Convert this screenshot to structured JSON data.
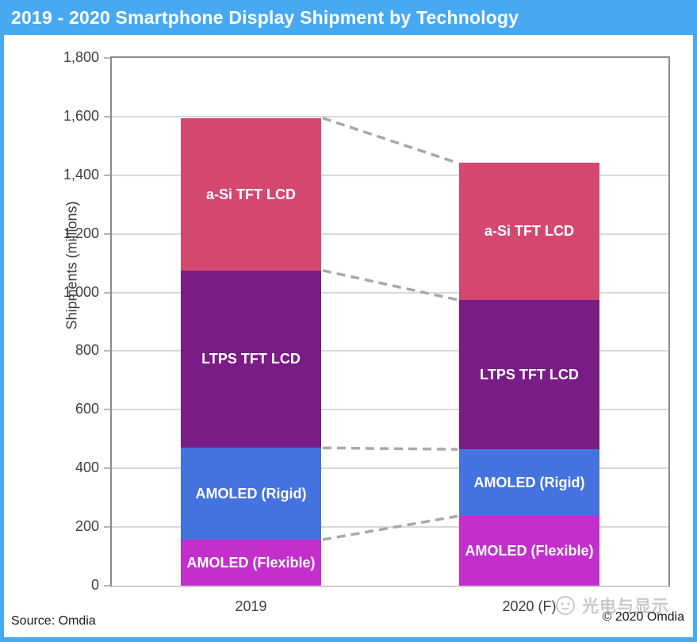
{
  "title_bar": {
    "title": "2019 - 2020 Smartphone Display Shipment by Technology",
    "bg_color": "#47A9F2",
    "text_color": "#FFFFFF"
  },
  "chart_data": {
    "type": "bar",
    "stacked": true,
    "title": "2019 - 2020 Smartphone Display Shipment by Technology",
    "categories": [
      "2019",
      "2020 (F)"
    ],
    "series": [
      {
        "name": "AMOLED (Flexible)",
        "values": [
          157,
          237
        ],
        "color": "#C32FCC"
      },
      {
        "name": "AMOLED (Rigid)",
        "values": [
          313,
          228
        ],
        "color": "#4472DE"
      },
      {
        "name": "LTPS TFT LCD",
        "values": [
          605,
          510
        ],
        "color": "#7A1C86"
      },
      {
        "name": "a-Si TFT LCD",
        "values": [
          520,
          467
        ],
        "color": "#D4486F"
      }
    ],
    "totals": [
      1595,
      1442
    ],
    "ylabel": "Shipments (millions)",
    "ylim": [
      0,
      1800
    ],
    "ytick_step": 200,
    "ytick_labels": [
      "0",
      "200",
      "400",
      "600",
      "800",
      "1,000",
      "1,200",
      "1,400",
      "1,600",
      "1,800"
    ],
    "grid": true,
    "legend_position": "none",
    "segment_labels_inside_bars": true,
    "connector_style": "dashed",
    "connector_color": "#A8A8A8"
  },
  "footer": {
    "source": "Source: Omdia",
    "copyright": "© 2020 Omdia",
    "watermark": "光电与显示"
  }
}
